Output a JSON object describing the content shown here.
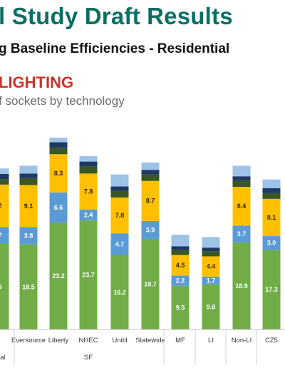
{
  "header": {
    "title": "l Study Draft Results",
    "subtitle": "g Baseline Efficiencies - Residential",
    "section": "LIGHTING",
    "caption": "f sockets by technology"
  },
  "colors": {
    "title": "#0b6e63",
    "section": "#c9342a",
    "green": "#70ad47",
    "blue": "#5b9bd5",
    "yellow": "#ffc000",
    "dark_green": "#385723",
    "navy": "#1f3864",
    "light_blue": "#9dc3e6"
  },
  "chart_data": {
    "type": "bar",
    "stacked": true,
    "categories": [
      "",
      "Eversource",
      "Liberty",
      "NHEC",
      "Unitil",
      "Statewide",
      "MF",
      "LI",
      "Non-LI",
      "CZ5"
    ],
    "groups": [
      {
        "label": "al",
        "categories": [
          ""
        ]
      },
      {
        "label": "SF",
        "categories": [
          "Eversource",
          "Liberty",
          "NHEC",
          "Unitil",
          "Statewide"
        ]
      },
      {
        "label": "",
        "categories": [
          "MF"
        ]
      },
      {
        "label": "",
        "categories": [
          "LI"
        ]
      },
      {
        "label": "",
        "categories": [
          "Non-LI"
        ]
      },
      {
        "label": "",
        "categories": [
          "CZ5"
        ]
      }
    ],
    "series": [
      {
        "values": [
          18.6,
          18.5,
          23.2,
          23.7,
          16.2,
          19.7,
          9.5,
          9.8,
          18.9,
          17.3
        ],
        "labels": [
          "6",
          "18.5",
          "23.2",
          "23.7",
          "16.2",
          "19.7",
          "9.5",
          "9.8",
          "18.9",
          "17.3"
        ]
      },
      {
        "values": [
          3.7,
          3.8,
          6.6,
          2.4,
          4.7,
          3.9,
          2.2,
          1.7,
          3.7,
          3.0
        ],
        "labels": [
          "7",
          "3.8",
          "6.6",
          "2.4",
          "4.7",
          "3.9",
          "2.2",
          "1.7",
          "3.7",
          "3.0"
        ]
      },
      {
        "values": [
          9.2,
          9.1,
          8.3,
          7.8,
          7.8,
          8.7,
          4.5,
          4.4,
          8.4,
          8.1
        ],
        "labels": [
          "2",
          "9.1",
          "8.3",
          "7.8",
          "7.8",
          "8.7",
          "4.5",
          "4.4",
          "8.4",
          "8.1"
        ]
      },
      {
        "values": [
          1.2,
          1.5,
          1.4,
          1.5,
          1.4,
          1.4,
          1.1,
          1.1,
          1.3,
          1.3
        ]
      },
      {
        "values": [
          1.1,
          1.0,
          1.2,
          1.1,
          1.0,
          1.0,
          0.8,
          0.8,
          1.0,
          1.0
        ]
      },
      {
        "values": [
          1.2,
          1.7,
          1.0,
          1.2,
          2.6,
          1.6,
          2.5,
          2.3,
          2.3,
          1.9
        ]
      }
    ]
  }
}
